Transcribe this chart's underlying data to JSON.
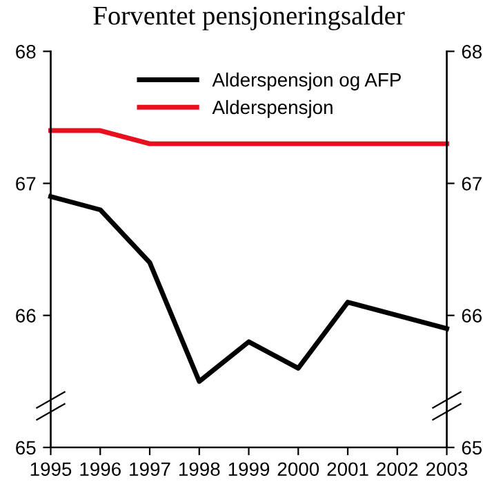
{
  "chart_data": {
    "type": "line",
    "title": "Forventet pensjoneringsalder",
    "x": [
      1995,
      1996,
      1997,
      1998,
      1999,
      2000,
      2001,
      2002,
      2003
    ],
    "series": [
      {
        "name": "Alderspensjon og AFP",
        "color": "#000000",
        "values": [
          66.9,
          66.8,
          66.4,
          65.5,
          65.8,
          65.6,
          66.1,
          66.0,
          65.9
        ]
      },
      {
        "name": "Alderspensjon",
        "color": "#e8101e",
        "values": [
          67.4,
          67.4,
          67.3,
          67.3,
          67.3,
          67.3,
          67.3,
          67.3,
          67.3
        ]
      }
    ],
    "xlim": [
      1995,
      2003
    ],
    "xticks": [
      1995,
      1996,
      1997,
      1998,
      1999,
      2000,
      2001,
      2002,
      2003
    ],
    "ylim": [
      65,
      68
    ],
    "yticks": [
      65,
      66,
      67,
      68
    ],
    "y2lim": [
      65,
      68
    ],
    "y2ticks": [
      65,
      66,
      67,
      68
    ],
    "legend": "top right",
    "grid": false,
    "marker": "none",
    "line_style": "solid"
  }
}
